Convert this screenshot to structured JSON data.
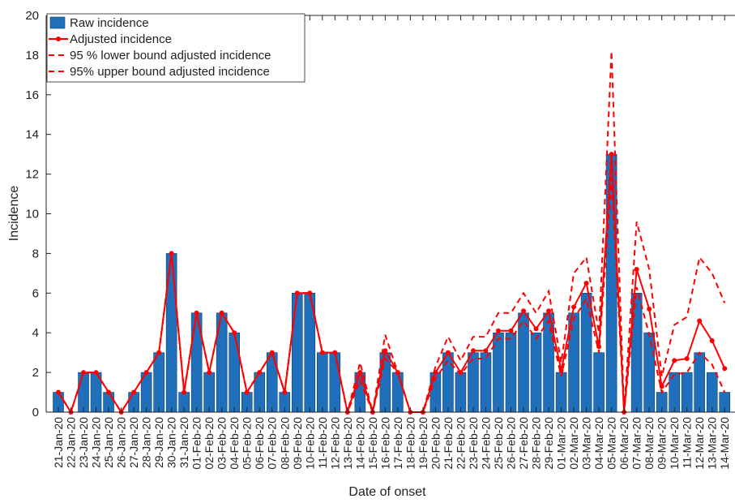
{
  "chart_data": {
    "type": "bar",
    "x_label": "Date of onset",
    "y_label": "Incidence",
    "categories": [
      "21-Jan-20",
      "22-Jan-20",
      "23-Jan-20",
      "24-Jan-20",
      "25-Jan-20",
      "26-Jan-20",
      "27-Jan-20",
      "28-Jan-20",
      "29-Jan-20",
      "30-Jan-20",
      "31-Jan-20",
      "01-Feb-20",
      "02-Feb-20",
      "03-Feb-20",
      "04-Feb-20",
      "05-Feb-20",
      "06-Feb-20",
      "07-Feb-20",
      "08-Feb-20",
      "09-Feb-20",
      "10-Feb-20",
      "11-Feb-20",
      "12-Feb-20",
      "13-Feb-20",
      "14-Feb-20",
      "15-Feb-20",
      "16-Feb-20",
      "17-Feb-20",
      "18-Feb-20",
      "19-Feb-20",
      "20-Feb-20",
      "21-Feb-20",
      "22-Feb-20",
      "23-Feb-20",
      "24-Feb-20",
      "25-Feb-20",
      "26-Feb-20",
      "27-Feb-20",
      "28-Feb-20",
      "29-Feb-20",
      "01-Mar-20",
      "02-Mar-20",
      "03-Mar-20",
      "04-Mar-20",
      "05-Mar-20",
      "06-Mar-20",
      "07-Mar-20",
      "08-Mar-20",
      "09-Mar-20",
      "10-Mar-20",
      "11-Mar-20",
      "12-Mar-20",
      "13-Mar-20",
      "14-Mar-20"
    ],
    "series": [
      {
        "name": "Raw incidence",
        "type": "bar",
        "color": "#1f6fba",
        "values": [
          1,
          0,
          2,
          2,
          1,
          0,
          1,
          2,
          3,
          8,
          1,
          5,
          2,
          5,
          4,
          1,
          2,
          3,
          1,
          6,
          6,
          3,
          3,
          0,
          2,
          0,
          3,
          2,
          0,
          0,
          2,
          3,
          2,
          3,
          3,
          4,
          4,
          5,
          4,
          5,
          2,
          5,
          6,
          3,
          13,
          0,
          6,
          4,
          1,
          2,
          2,
          3,
          2,
          1
        ]
      },
      {
        "name": "Adjusted incidence",
        "type": "line",
        "color": "#ff0000",
        "markers": true,
        "dashed": false,
        "values": [
          1,
          0,
          2,
          2,
          1,
          0,
          1,
          2,
          3,
          8,
          1,
          5,
          2,
          5,
          4,
          1,
          2,
          3,
          1,
          6,
          6,
          3,
          3,
          0,
          2,
          0,
          3.1,
          2,
          0,
          0,
          2,
          3,
          2,
          3.1,
          3.1,
          4.1,
          4.1,
          5.1,
          4.2,
          5.1,
          2.1,
          5.3,
          6.5,
          3.3,
          13,
          0,
          7.2,
          5.2,
          1.3,
          2.6,
          2.7,
          4.6,
          3.6,
          2.2
        ]
      },
      {
        "name": "95 % lower bound adjusted incidence",
        "type": "line",
        "color": "#ff0000",
        "markers": false,
        "dashed": true,
        "values": [
          1,
          0,
          2,
          2,
          1,
          0,
          1,
          2,
          3,
          8,
          1,
          5,
          2,
          5,
          4,
          1,
          2,
          3,
          1,
          6,
          6,
          3,
          3,
          0,
          1.6,
          0,
          2.7,
          2,
          0,
          0,
          1.7,
          2.6,
          1.9,
          2.7,
          2.7,
          3.7,
          3.7,
          4.6,
          3.7,
          4.6,
          1.8,
          4.7,
          5.7,
          3,
          11.8,
          0,
          6.3,
          3.9,
          1,
          1.9,
          2,
          3,
          2.4,
          1
        ]
      },
      {
        "name": "95%  upper bound adjusted incidence",
        "type": "line",
        "color": "#ff0000",
        "markers": false,
        "dashed": true,
        "values": [
          1,
          0,
          2,
          2,
          1,
          0,
          1,
          2,
          3,
          8,
          1,
          5,
          2,
          5,
          4,
          1,
          2,
          3,
          1,
          6,
          6,
          3,
          3,
          0,
          2.5,
          0,
          3.9,
          2,
          0,
          0,
          2.3,
          3.8,
          2.6,
          3.8,
          3.8,
          5,
          5,
          6,
          5,
          6.1,
          2.5,
          7,
          7.8,
          4,
          18.2,
          0,
          9.6,
          7.2,
          1.8,
          4.4,
          4.8,
          7.8,
          7,
          5.5
        ]
      }
    ],
    "ylim": [
      0,
      20
    ],
    "yticks": [
      0,
      2,
      4,
      6,
      8,
      10,
      12,
      14,
      16,
      18,
      20
    ],
    "grid": false,
    "legend": "upper left"
  }
}
